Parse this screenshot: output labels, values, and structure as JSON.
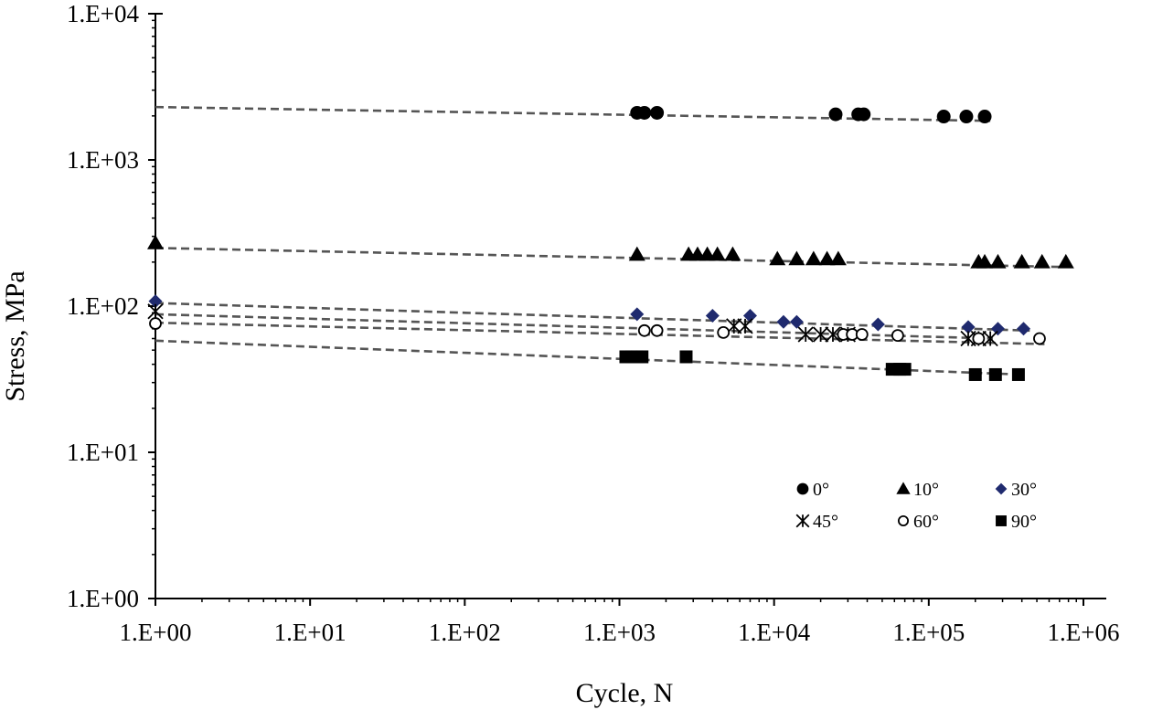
{
  "chart_data": {
    "type": "scatter",
    "title": "",
    "xlabel": "Cycle, N",
    "ylabel": "Stress, MPa",
    "xscale": "log",
    "yscale": "log",
    "xlim": [
      1,
      1000000
    ],
    "ylim": [
      1,
      10000
    ],
    "xticks": [
      {
        "value": 1,
        "label": "1.E+00"
      },
      {
        "value": 10,
        "label": "1.E+01"
      },
      {
        "value": 100,
        "label": "1.E+02"
      },
      {
        "value": 1000,
        "label": "1.E+03"
      },
      {
        "value": 10000,
        "label": "1.E+04"
      },
      {
        "value": 100000,
        "label": "1.E+05"
      },
      {
        "value": 1000000,
        "label": "1.E+06"
      }
    ],
    "yticks": [
      {
        "value": 1,
        "label": "1.E+00"
      },
      {
        "value": 10,
        "label": "1.E+01"
      },
      {
        "value": 100,
        "label": "1.E+02"
      },
      {
        "value": 1000,
        "label": "1.E+03"
      },
      {
        "value": 10000,
        "label": "1.E+04"
      }
    ],
    "grid": false,
    "legend_position": "bottom-right",
    "series": [
      {
        "name": "0°",
        "marker": "circle",
        "color": "#000000",
        "points": [
          [
            1300,
            2100
          ],
          [
            1450,
            2100
          ],
          [
            1750,
            2100
          ],
          [
            25000,
            2050
          ],
          [
            35000,
            2050
          ],
          [
            38000,
            2050
          ],
          [
            125000,
            1980
          ],
          [
            175000,
            1980
          ],
          [
            230000,
            1980
          ]
        ],
        "trend": {
          "x": [
            1,
            250000
          ],
          "y": [
            2300,
            1850
          ]
        }
      },
      {
        "name": "10°",
        "marker": "triangle",
        "color": "#000000",
        "points": [
          [
            1,
            270
          ],
          [
            1300,
            225
          ],
          [
            2800,
            225
          ],
          [
            3200,
            225
          ],
          [
            3700,
            225
          ],
          [
            4300,
            225
          ],
          [
            5400,
            225
          ],
          [
            10500,
            210
          ],
          [
            14000,
            210
          ],
          [
            18000,
            210
          ],
          [
            22000,
            210
          ],
          [
            26000,
            210
          ],
          [
            210000,
            200
          ],
          [
            230000,
            200
          ],
          [
            280000,
            200
          ],
          [
            400000,
            200
          ],
          [
            540000,
            200
          ],
          [
            770000,
            200
          ]
        ],
        "trend": {
          "x": [
            1,
            780000
          ],
          "y": [
            250,
            185
          ]
        }
      },
      {
        "name": "30°",
        "marker": "diamond",
        "color": "#1f2a6e",
        "points": [
          [
            1,
            108
          ],
          [
            1300,
            88
          ],
          [
            4000,
            86
          ],
          [
            7000,
            86
          ],
          [
            11500,
            78
          ],
          [
            14000,
            78
          ],
          [
            47000,
            75
          ],
          [
            180000,
            72
          ],
          [
            280000,
            70
          ],
          [
            410000,
            70
          ]
        ],
        "trend": {
          "x": [
            1,
            450000
          ],
          "y": [
            105,
            68
          ]
        }
      },
      {
        "name": "45°",
        "marker": "asterisk",
        "color": "#000000",
        "points": [
          [
            1,
            92
          ],
          [
            5500,
            73
          ],
          [
            6500,
            73
          ],
          [
            16000,
            64
          ],
          [
            20000,
            64
          ],
          [
            24000,
            64
          ],
          [
            30000,
            64
          ],
          [
            180000,
            60
          ],
          [
            210000,
            60
          ],
          [
            250000,
            60
          ]
        ],
        "trend": {
          "x": [
            1,
            260000
          ],
          "y": [
            88,
            60
          ]
        }
      },
      {
        "name": "60°",
        "marker": "open-circle",
        "color": "#000000",
        "points": [
          [
            1,
            76
          ],
          [
            1450,
            68
          ],
          [
            1750,
            68
          ],
          [
            4700,
            66
          ],
          [
            28000,
            64
          ],
          [
            32000,
            64
          ],
          [
            37000,
            64
          ],
          [
            63000,
            63
          ],
          [
            210000,
            60
          ],
          [
            520000,
            60
          ]
        ],
        "trend": {
          "x": [
            1,
            560000
          ],
          "y": [
            77,
            55
          ]
        }
      },
      {
        "name": "90°",
        "marker": "square",
        "color": "#000000",
        "points": [
          [
            1100,
            45
          ],
          [
            1200,
            45
          ],
          [
            1300,
            45
          ],
          [
            1400,
            45
          ],
          [
            2700,
            45
          ],
          [
            58000,
            37
          ],
          [
            65000,
            37
          ],
          [
            70000,
            37
          ],
          [
            200000,
            34
          ],
          [
            270000,
            34
          ],
          [
            380000,
            34
          ]
        ],
        "trend": {
          "x": [
            1,
            400000
          ],
          "y": [
            58,
            34
          ]
        }
      }
    ]
  }
}
